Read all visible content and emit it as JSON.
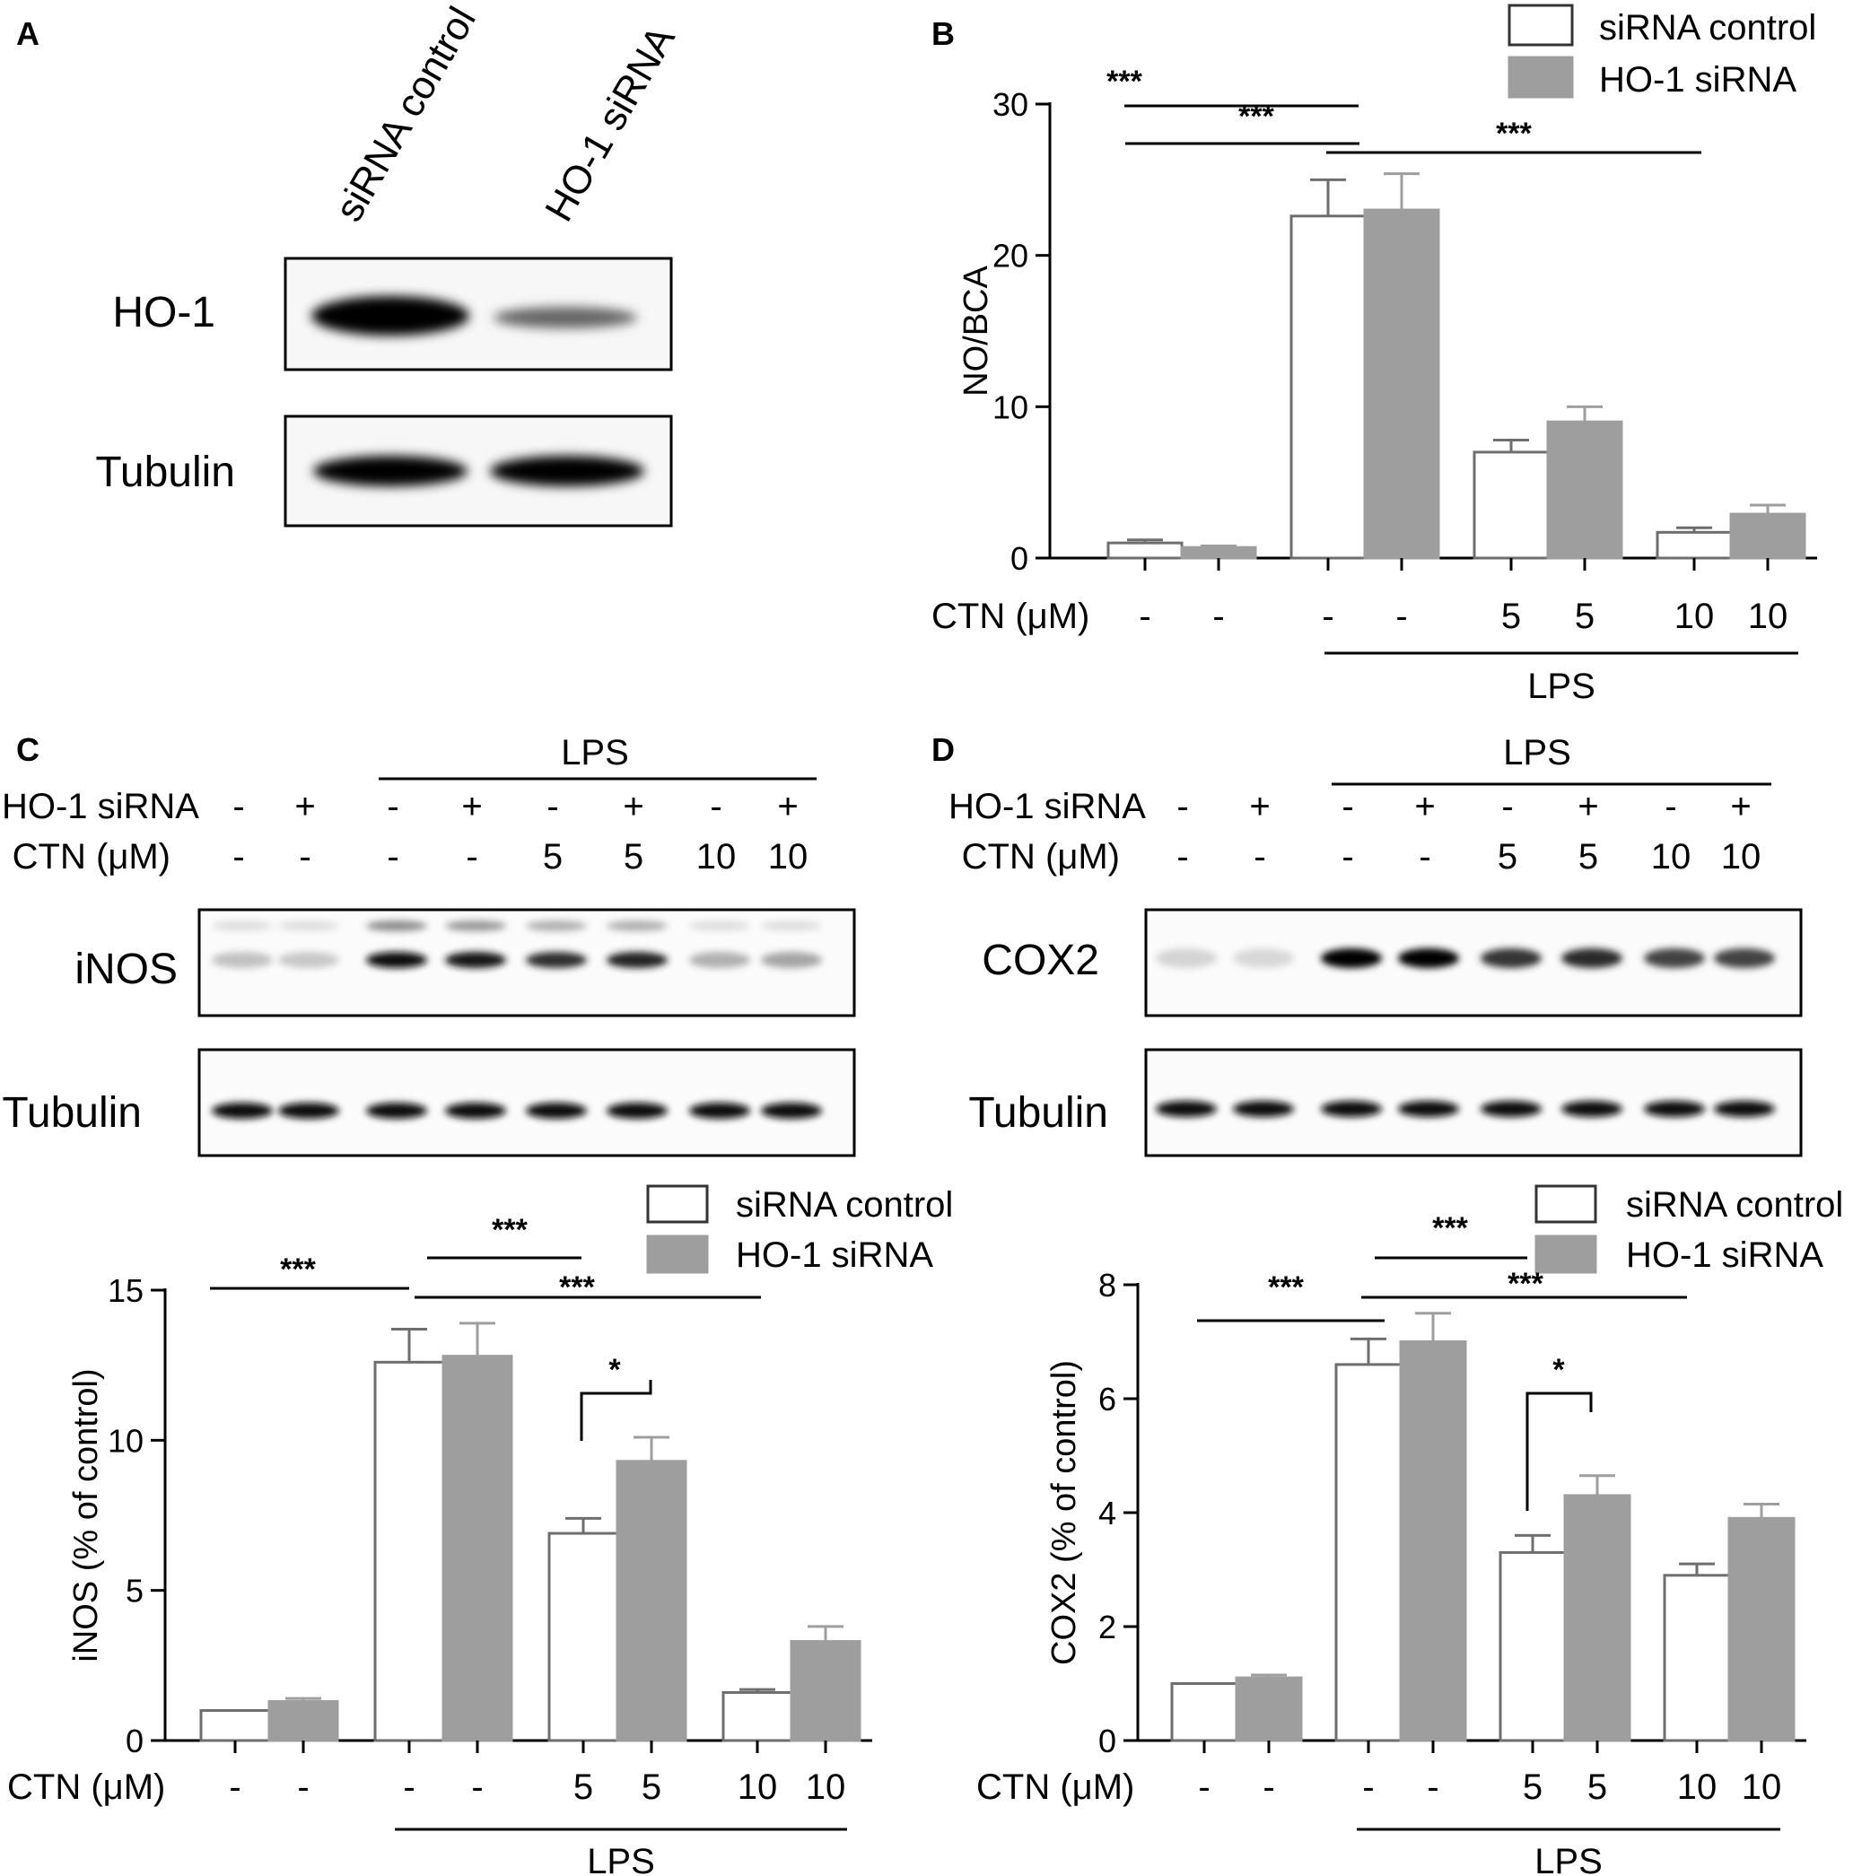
{
  "colors": {
    "control_fill": "#ffffff",
    "sirna_fill": "#9e9e9e",
    "stroke": "#000000",
    "error": "#9e9e9e"
  },
  "panels": {
    "A": {
      "letter": "A",
      "lanes": [
        "siRNA control",
        "HO-1 siRNA"
      ],
      "blots": [
        "HO-1",
        "Tubulin"
      ]
    },
    "B": {
      "letter": "B"
    },
    "C": {
      "letter": "C",
      "lps": "LPS",
      "row1": "HO-1 siRNA",
      "row2": "CTN (μM)",
      "sirna_signs": [
        "-",
        "+",
        "-",
        "+",
        "-",
        "+",
        "-",
        "+"
      ],
      "ctn_vals": [
        "-",
        "-",
        "-",
        "-",
        "5",
        "5",
        "10",
        "10"
      ],
      "blots": [
        "iNOS",
        "Tubulin"
      ]
    },
    "D": {
      "letter": "D",
      "lps": "LPS",
      "row1": "HO-1 siRNA",
      "row2": "CTN (μM)",
      "sirna_signs": [
        "-",
        "+",
        "-",
        "+",
        "-",
        "+",
        "-",
        "+"
      ],
      "ctn_vals": [
        "-",
        "-",
        "-",
        "-",
        "5",
        "5",
        "10",
        "10"
      ],
      "blots": [
        "COX2",
        "Tubulin"
      ]
    }
  },
  "chart_data": [
    {
      "id": "B",
      "type": "bar",
      "ylabel": "NO/BCA",
      "ylim": [
        0,
        30
      ],
      "yticks": [
        0,
        10,
        20,
        30
      ],
      "categories": [
        "-",
        "-",
        "5",
        "10"
      ],
      "cond_label": "CTN (μM)",
      "group_label": "LPS",
      "legend": [
        "siRNA control",
        "HO-1 siRNA"
      ],
      "series": [
        {
          "name": "siRNA control",
          "values": [
            1.0,
            22.6,
            7.0,
            1.7
          ],
          "errors": [
            0.2,
            2.4,
            0.8,
            0.3
          ]
        },
        {
          "name": "HO-1 siRNA",
          "values": [
            0.7,
            23.0,
            9.0,
            2.9
          ],
          "errors": [
            0.1,
            2.4,
            1.0,
            0.6
          ]
        }
      ],
      "significance": [
        "***",
        "***",
        "***"
      ]
    },
    {
      "id": "C",
      "type": "bar",
      "ylabel": "iNOS (% of control)",
      "ylim": [
        0,
        15
      ],
      "yticks": [
        0,
        5,
        10,
        15
      ],
      "categories": [
        "-",
        "-",
        "5",
        "10"
      ],
      "cond_label": "CTN (μM)",
      "group_label": "LPS",
      "legend": [
        "siRNA control",
        "HO-1 siRNA"
      ],
      "series": [
        {
          "name": "siRNA control",
          "values": [
            1.0,
            12.6,
            6.9,
            1.6
          ],
          "errors": [
            0.0,
            1.1,
            0.5,
            0.1
          ]
        },
        {
          "name": "HO-1 siRNA",
          "values": [
            1.3,
            12.8,
            9.3,
            3.3
          ],
          "errors": [
            0.1,
            1.1,
            0.8,
            0.5
          ]
        }
      ],
      "significance": [
        "***",
        "***",
        "***",
        "*"
      ]
    },
    {
      "id": "D",
      "type": "bar",
      "ylabel": "COX2 (% of control)",
      "ylim": [
        0,
        8
      ],
      "yticks": [
        0,
        2,
        4,
        6,
        8
      ],
      "categories": [
        "-",
        "-",
        "5",
        "10"
      ],
      "cond_label": "CTN (μM)",
      "group_label": "LPS",
      "legend": [
        "siRNA control",
        "HO-1 siRNA"
      ],
      "series": [
        {
          "name": "siRNA control",
          "values": [
            1.0,
            6.6,
            3.3,
            2.9
          ],
          "errors": [
            0.0,
            0.45,
            0.3,
            0.2
          ]
        },
        {
          "name": "HO-1 siRNA",
          "values": [
            1.1,
            7.0,
            4.3,
            3.9
          ],
          "errors": [
            0.05,
            0.5,
            0.35,
            0.25
          ]
        }
      ],
      "significance": [
        "***",
        "***",
        "***",
        "*"
      ]
    }
  ]
}
